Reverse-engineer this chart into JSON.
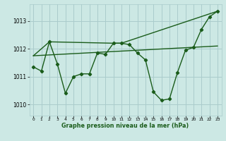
{
  "xlabel": "Graphe pression niveau de la mer (hPa)",
  "xlim": [
    -0.5,
    23.5
  ],
  "ylim": [
    1009.6,
    1013.6
  ],
  "yticks": [
    1010,
    1011,
    1012,
    1013
  ],
  "xticks": [
    0,
    1,
    2,
    3,
    4,
    5,
    6,
    7,
    8,
    9,
    10,
    11,
    12,
    13,
    14,
    15,
    16,
    17,
    18,
    19,
    20,
    21,
    22,
    23
  ],
  "bg_color": "#cce8e4",
  "grid_color": "#aacccc",
  "line_color": "#1a5c1a",
  "line1_x": [
    0,
    1,
    2,
    3,
    4,
    5,
    6,
    7,
    8,
    9,
    10,
    11,
    12,
    13,
    14,
    15,
    16,
    17,
    18,
    19,
    20,
    21,
    22,
    23
  ],
  "line1_y": [
    1011.35,
    1011.2,
    1012.25,
    1011.45,
    1010.4,
    1011.0,
    1011.1,
    1011.1,
    1011.85,
    1011.8,
    1012.2,
    1012.2,
    1012.15,
    1011.85,
    1011.6,
    1010.45,
    1010.15,
    1010.2,
    1011.15,
    1011.95,
    1012.05,
    1012.7,
    1013.15,
    1013.35
  ],
  "line2_x": [
    0,
    23
  ],
  "line2_y": [
    1011.75,
    1012.1
  ],
  "line3_x": [
    0,
    2,
    10,
    11,
    23
  ],
  "line3_y": [
    1011.75,
    1012.25,
    1012.2,
    1012.2,
    1013.35
  ],
  "marker": "D",
  "markersize": 2.2,
  "linewidth": 1.0
}
